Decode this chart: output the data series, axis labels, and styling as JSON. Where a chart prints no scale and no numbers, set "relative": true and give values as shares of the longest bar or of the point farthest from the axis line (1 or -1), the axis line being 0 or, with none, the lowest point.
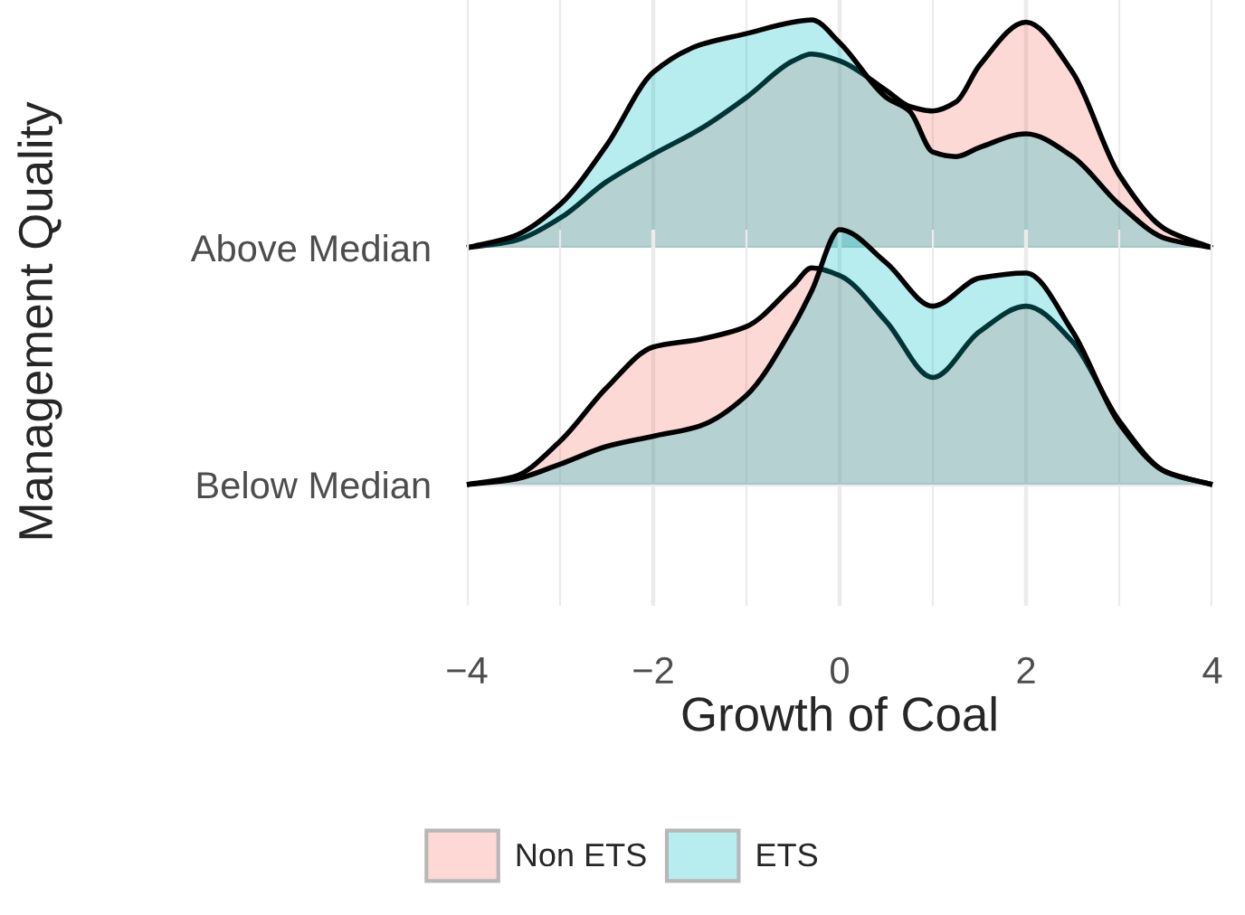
{
  "chart_data": [
    {
      "type": "area",
      "relative": true,
      "ylabel": "Below Median",
      "xlabel": "Growth of Coal",
      "annotations": [
        "Management Quality"
      ],
      "xlim": [
        -4,
        4
      ],
      "grid": true,
      "legend": "bottom",
      "xticks": [
        {
          "value": -4,
          "label": "−4"
        },
        {
          "value": -2,
          "label": "−2"
        },
        0,
        2,
        4
      ],
      "x": [
        -4,
        -3.5,
        -3,
        -2.5,
        -2,
        -1.5,
        -1,
        -0.5,
        -0.3,
        0,
        0.5,
        1,
        1.5,
        2,
        2.5,
        3,
        3.5,
        4
      ],
      "series": [
        {
          "name": "Non ETS",
          "color": "#f8766d",
          "values": [
            0,
            0.03,
            0.17,
            0.38,
            0.54,
            0.57,
            0.62,
            0.78,
            0.85,
            0.82,
            0.64,
            0.42,
            0.6,
            0.7,
            0.56,
            0.25,
            0.05,
            0
          ]
        },
        {
          "name": "ETS",
          "color": "#00bfc4",
          "values": [
            0,
            0.02,
            0.08,
            0.15,
            0.19,
            0.23,
            0.35,
            0.62,
            0.76,
            1,
            0.87,
            0.7,
            0.81,
            0.83,
            0.6,
            0.24,
            0.05,
            0
          ]
        }
      ]
    },
    {
      "type": "area",
      "relative": true,
      "ylabel": "Above Median",
      "xlim": [
        -4,
        4
      ],
      "tick_labels": "y",
      "grid": true,
      "legend": "bottom",
      "x": [
        -4,
        -3.5,
        -3,
        -2.5,
        -2,
        -1.5,
        -1,
        -0.5,
        -0.3,
        0,
        0.5,
        0.75,
        1,
        1.25,
        1.5,
        2,
        2.5,
        3,
        3.5,
        4
      ],
      "series": [
        {
          "name": "Non ETS",
          "color": "#f8766d",
          "values": [
            0,
            0.03,
            0.13,
            0.29,
            0.41,
            0.52,
            0.66,
            0.82,
            0.85,
            0.82,
            0.69,
            0.62,
            0.6,
            0.64,
            0.8,
            0.99,
            0.77,
            0.32,
            0.08,
            0
          ]
        },
        {
          "name": "ETS",
          "color": "#00bfc4",
          "values": [
            0,
            0.05,
            0.19,
            0.45,
            0.77,
            0.89,
            0.94,
            0.99,
            1,
            0.9,
            0.66,
            0.6,
            0.42,
            0.4,
            0.44,
            0.5,
            0.4,
            0.19,
            0.04,
            0
          ]
        }
      ]
    }
  ]
}
